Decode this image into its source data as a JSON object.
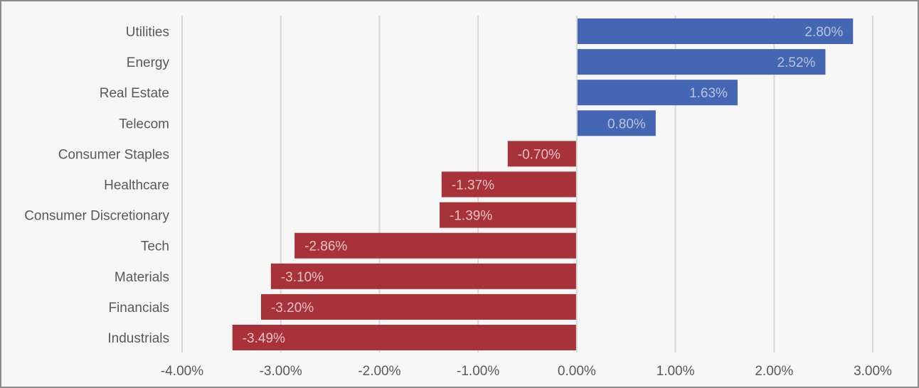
{
  "chart_data": {
    "type": "bar",
    "orientation": "horizontal",
    "categories": [
      "Utilities",
      "Energy",
      "Real Estate",
      "Telecom",
      "Consumer Staples",
      "Healthcare",
      "Consumer Discretionary",
      "Tech",
      "Materials",
      "Financials",
      "Industrials"
    ],
    "values": [
      2.8,
      2.52,
      1.63,
      0.8,
      -0.7,
      -1.37,
      -1.39,
      -2.86,
      -3.1,
      -3.2,
      -3.49
    ],
    "data_labels": [
      "2.80%",
      "2.52%",
      "1.63%",
      "0.80%",
      "-0.70%",
      "-1.37%",
      "-1.39%",
      "-2.86%",
      "-3.10%",
      "-3.20%",
      "-3.49%"
    ],
    "xlim": [
      -4.0,
      3.0
    ],
    "x_ticks": [
      -4,
      -3,
      -2,
      -1,
      0,
      1,
      2,
      3
    ],
    "x_tick_labels": [
      "-4.00%",
      "-3.00%",
      "-2.00%",
      "-1.00%",
      "0.00%",
      "1.00%",
      "2.00%",
      "3.00%"
    ],
    "title": "",
    "xlabel": "",
    "ylabel": "",
    "grid": "vertical",
    "legend": "none",
    "colors": {
      "positive": "#4466b3",
      "negative": "#a8323a",
      "positive_label": "#b8c3dd",
      "negative_label": "#e8c3c5",
      "gridline": "#d9d9d9",
      "text": "#595959",
      "background": "#f7f7f7",
      "border": "#8c8c8c"
    }
  }
}
